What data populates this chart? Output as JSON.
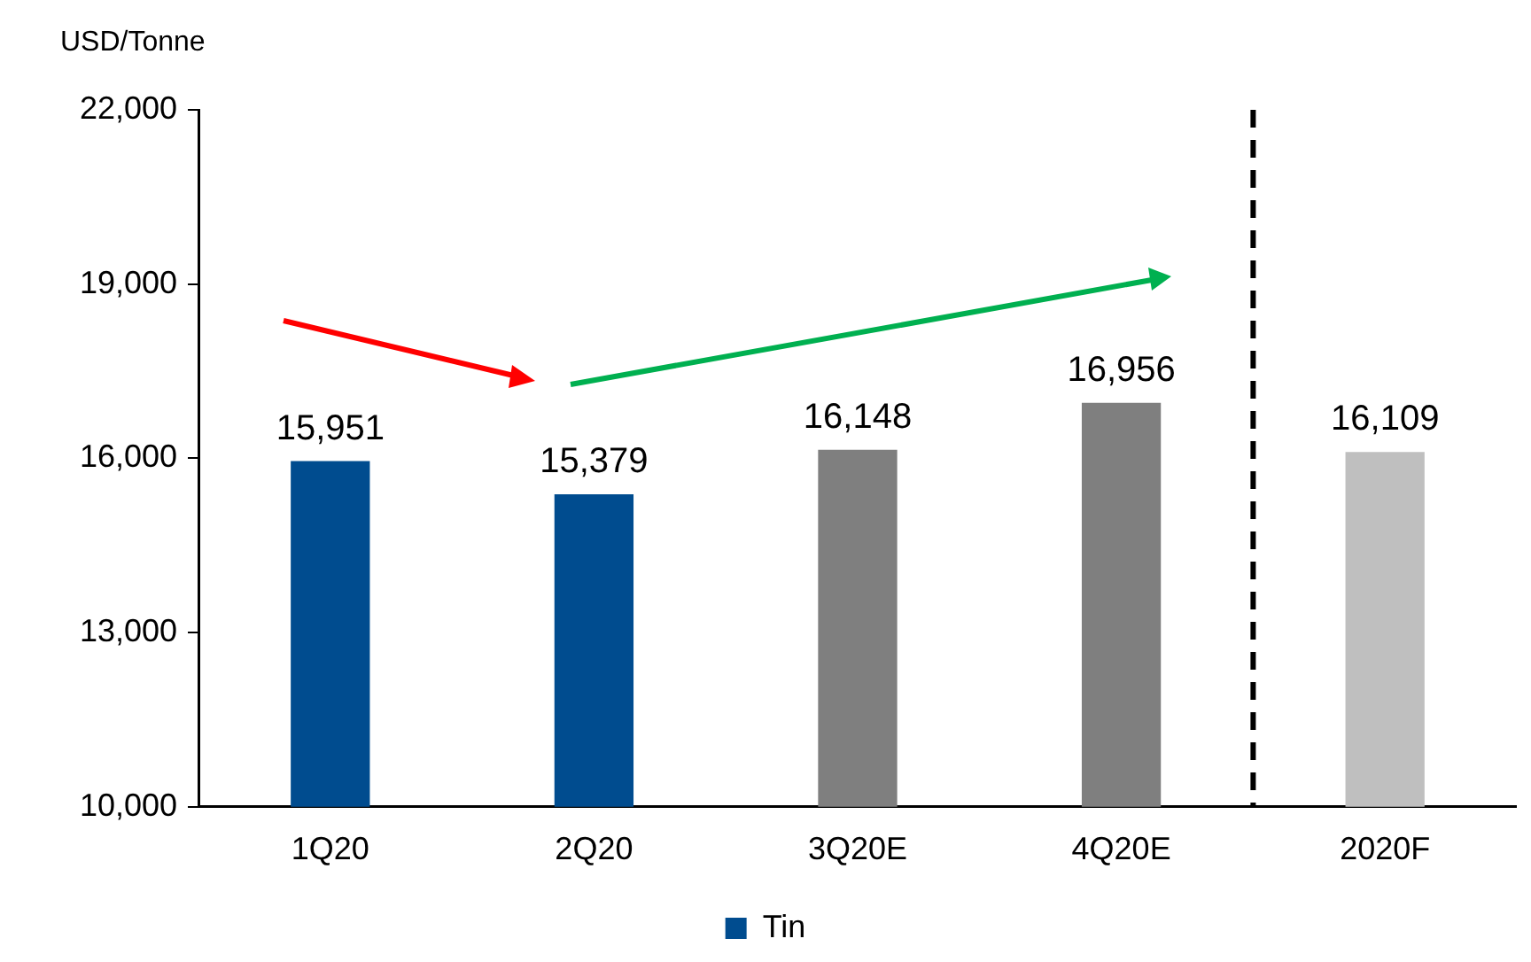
{
  "chart_data": {
    "type": "bar",
    "ylabel": "USD/Tonne",
    "categories": [
      "1Q20",
      "2Q20",
      "3Q20E",
      "4Q20E",
      "2020F"
    ],
    "series": [
      {
        "name": "Tin",
        "color": "#004c8f",
        "colors": [
          "#004c8f",
          "#004c8f",
          "#7f7f7f",
          "#7f7f7f",
          "#bfbfbf"
        ],
        "values": [
          15951,
          15379,
          16148,
          16956,
          16109
        ],
        "value_labels": [
          "15,951",
          "15,379",
          "16,148",
          "16,956",
          "16,109"
        ]
      }
    ],
    "ylim": [
      10000,
      22000
    ],
    "yticks": [
      {
        "value": 10000,
        "label": "10,000"
      },
      {
        "value": 13000,
        "label": "13,000"
      },
      {
        "value": 16000,
        "label": "16,000"
      },
      {
        "value": 19000,
        "label": "19,000"
      },
      {
        "value": 22000,
        "label": "22,000"
      }
    ],
    "grid": false,
    "legend": "bottom"
  }
}
